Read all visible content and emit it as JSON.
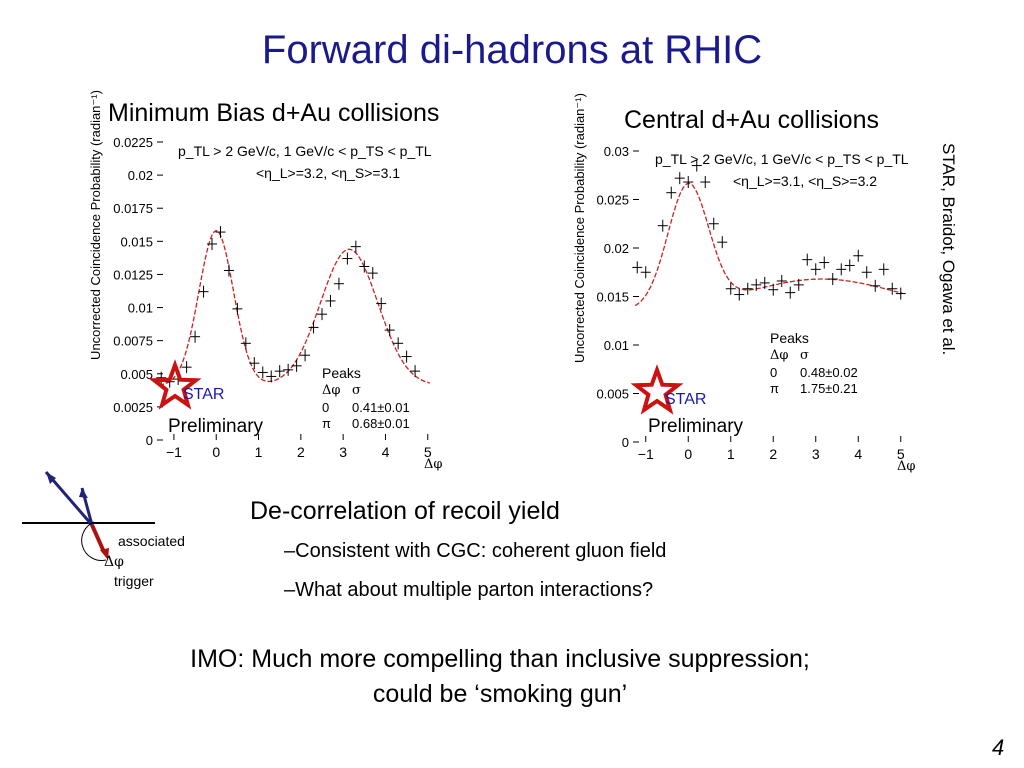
{
  "title": "Forward di-hadrons at RHIC",
  "side_credit": "STAR, Braidot, Ogawa et al.",
  "decorrelation": "De-correlation of recoil yield",
  "bullets": [
    "–Consistent with CGC: coherent gluon field",
    "–What about multiple parton interactions?"
  ],
  "imo_line1": "IMO: Much more compelling than inclusive suppression;",
  "imo_line2": "could be ‘smoking gun’",
  "page_number": "4",
  "diagram": {
    "associated": "associated",
    "delta_phi": "Δφ",
    "trigger": "trigger"
  },
  "colors": {
    "title": "#1a1a8c",
    "fit": "#cc2222",
    "star_red": "#cc1111",
    "star_blue": "#1a1aaa"
  },
  "chart_data": [
    {
      "type": "scatter",
      "title": "Minimum Bias d+Au collisions",
      "ylabel": "Uncorrected Coincidence Probability (radian⁻¹)",
      "xlabel": "Δφ",
      "cut1": "p_TL > 2 GeV/c,  1 GeV/c < p_TS < p_TL",
      "cut2": "<η_L>=3.2, <η_S>=3.1",
      "xlim": [
        -1.4,
        5.1
      ],
      "ylim": [
        0,
        0.0225
      ],
      "xticks": [
        -1,
        0,
        1,
        2,
        3,
        4,
        5
      ],
      "xtick_labels": [
        "−1",
        "0",
        "1",
        "2",
        "3",
        "4",
        "5"
      ],
      "yticks": [
        0,
        0.0025,
        0.005,
        0.0075,
        0.01,
        0.0125,
        0.015,
        0.0175,
        0.02,
        0.0225
      ],
      "ytick_labels": [
        "0",
        "0.0025",
        "0.005",
        "0.0075",
        "0.01",
        "0.0125",
        "0.015",
        "0.0175",
        "0.02",
        "0.0225"
      ],
      "fit": {
        "base": 0.0041,
        "near": {
          "amp": 0.0117,
          "mu": 0,
          "sigma": 0.41
        },
        "away": {
          "amp": 0.0103,
          "mu": 3.14159,
          "sigma": 0.68
        }
      },
      "x": [
        -1.3,
        -1.1,
        -0.9,
        -0.7,
        -0.5,
        -0.3,
        -0.1,
        0.1,
        0.3,
        0.5,
        0.7,
        0.9,
        1.1,
        1.3,
        1.5,
        1.7,
        1.9,
        2.1,
        2.3,
        2.5,
        2.7,
        2.9,
        3.1,
        3.3,
        3.5,
        3.7,
        3.9,
        4.1,
        4.3,
        4.5,
        4.7
      ],
      "values": [
        0.0047,
        0.0044,
        0.0046,
        0.0055,
        0.0078,
        0.0112,
        0.0148,
        0.0157,
        0.0128,
        0.0099,
        0.0073,
        0.0058,
        0.0051,
        0.0048,
        0.0052,
        0.0053,
        0.0056,
        0.0064,
        0.0085,
        0.0095,
        0.0105,
        0.0118,
        0.0137,
        0.0146,
        0.0131,
        0.0126,
        0.0103,
        0.0083,
        0.0073,
        0.0063,
        0.0052
      ],
      "peaks": {
        "header": "Peaks",
        "cols": [
          "Δφ",
          "σ"
        ],
        "rows": [
          [
            "0",
            "0.41±0.01"
          ],
          [
            "π",
            "0.68±0.01"
          ]
        ]
      },
      "star_label": "STAR",
      "preliminary_label": "Preliminary"
    },
    {
      "type": "scatter",
      "title": "Central d+Au collisions",
      "ylabel": "Uncorrected Coincidence Probability (radian⁻¹)",
      "xlabel": "Δφ",
      "cut1": "p_TL > 2 GeV/c,  1 GeV/c < p_TS < p_TL",
      "cut2": "<η_L>=3.1, <η_S>=3.2",
      "xlim": [
        -1.3,
        5.1
      ],
      "ylim": [
        0,
        0.03
      ],
      "xticks": [
        -1,
        0,
        1,
        2,
        3,
        4,
        5
      ],
      "xtick_labels": [
        "−1",
        "0",
        "1",
        "2",
        "3",
        "4",
        "5"
      ],
      "yticks": [
        0,
        0.005,
        0.01,
        0.015,
        0.02,
        0.025,
        0.03
      ],
      "ytick_labels": [
        "0",
        "0.005",
        "0.01",
        "0.015",
        "0.02",
        "0.025",
        "0.03"
      ],
      "fit": {
        "base": 0.0135,
        "near": {
          "amp": 0.0125,
          "mu": 0,
          "sigma": 0.48
        },
        "away": {
          "amp": 0.0033,
          "mu": 3.14159,
          "sigma": 1.75
        }
      },
      "x": [
        -1.2,
        -1.0,
        -0.6,
        -0.4,
        -0.2,
        0.0,
        0.2,
        0.4,
        0.6,
        0.8,
        1.0,
        1.2,
        1.4,
        1.6,
        1.8,
        2.0,
        2.2,
        2.4,
        2.6,
        2.8,
        3.0,
        3.2,
        3.4,
        3.6,
        3.8,
        4.0,
        4.2,
        4.4,
        4.6,
        4.8,
        5.0
      ],
      "values": [
        0.018,
        0.0175,
        0.0223,
        0.0257,
        0.0272,
        0.0268,
        0.0285,
        0.0268,
        0.0225,
        0.0206,
        0.0158,
        0.0152,
        0.0158,
        0.0162,
        0.0164,
        0.0157,
        0.0166,
        0.0154,
        0.0162,
        0.0188,
        0.0178,
        0.0185,
        0.0168,
        0.0178,
        0.0182,
        0.0192,
        0.0175,
        0.0161,
        0.0178,
        0.0158,
        0.0153
      ],
      "peaks": {
        "header": "Peaks",
        "cols": [
          "Δφ",
          "σ"
        ],
        "rows": [
          [
            "0",
            "0.48±0.02"
          ],
          [
            "π",
            "1.75±0.21"
          ]
        ]
      },
      "star_label": "STAR",
      "preliminary_label": "Preliminary"
    }
  ]
}
